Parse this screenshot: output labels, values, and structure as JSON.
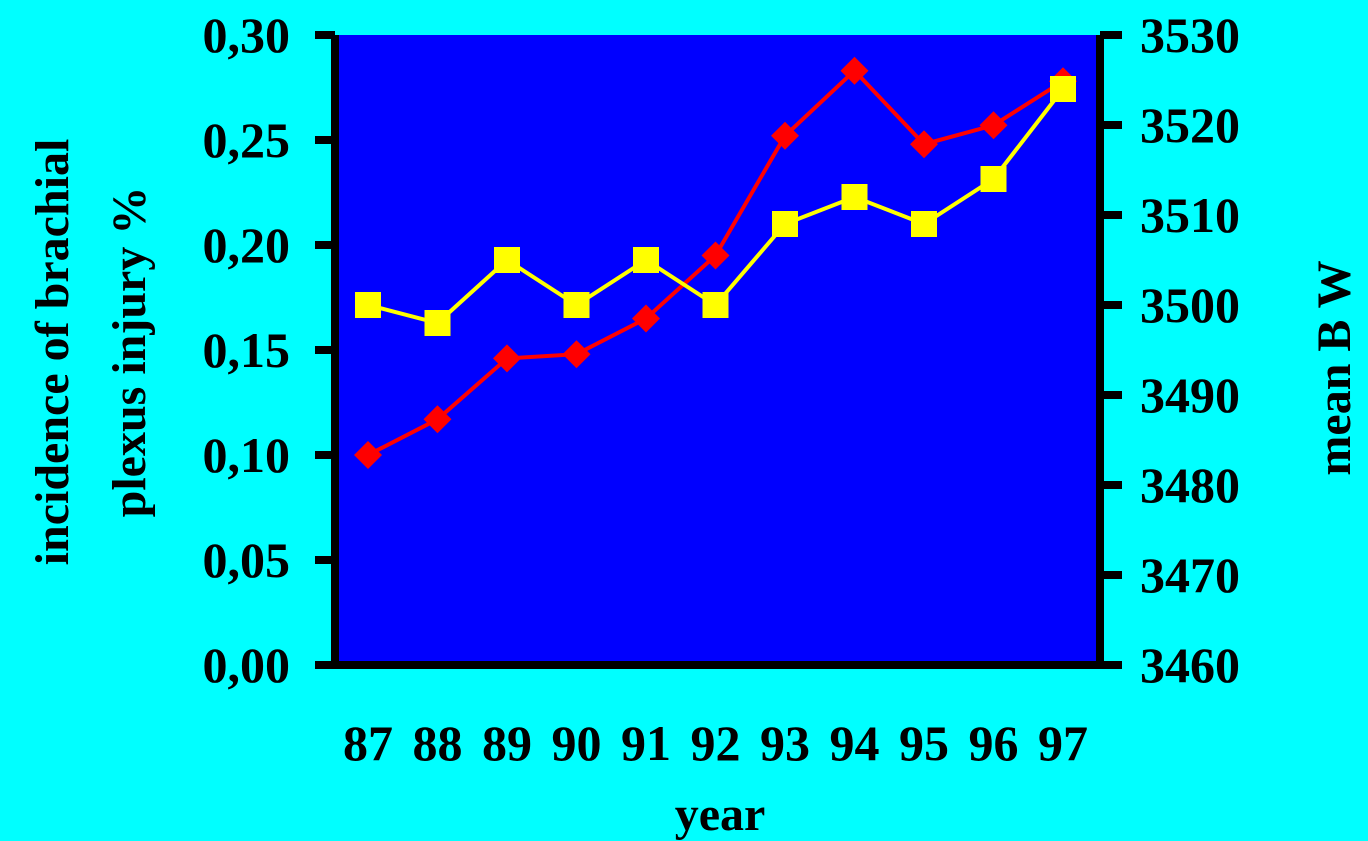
{
  "chart_data": {
    "type": "line",
    "title": "",
    "colors": {
      "background": "#00FFFF",
      "plot_area": "#0000FF",
      "axes": "#000000"
    },
    "x": [
      "87",
      "88",
      "89",
      "90",
      "91",
      "92",
      "93",
      "94",
      "95",
      "96",
      "97"
    ],
    "xlabel": "year",
    "ylabel_left": [
      "incidence of brachial",
      "plexus  injury %"
    ],
    "ylabel_right": "mean B W",
    "y_left": {
      "lim": [
        0,
        0.3
      ],
      "ticks": [
        "0,00",
        "0,05",
        "0,10",
        "0,15",
        "0,20",
        "0,25",
        "0,30"
      ]
    },
    "y_right": {
      "lim": [
        3460,
        3530
      ],
      "ticks": [
        "3460",
        "3470",
        "3480",
        "3490",
        "3500",
        "3510",
        "3520",
        "3530"
      ]
    },
    "grid": false,
    "legend": "none",
    "series": [
      {
        "axis": "left",
        "color": "#FF0000",
        "marker": "diamond",
        "values": [
          0.1,
          0.117,
          0.146,
          0.148,
          0.165,
          0.195,
          0.252,
          0.283,
          0.248,
          0.257,
          0.278
        ]
      },
      {
        "axis": "right",
        "color": "#FFFF00",
        "marker": "square",
        "values": [
          3500,
          3498,
          3505,
          3500,
          3505,
          3500,
          3509,
          3512,
          3509,
          3514,
          3524
        ]
      }
    ]
  }
}
